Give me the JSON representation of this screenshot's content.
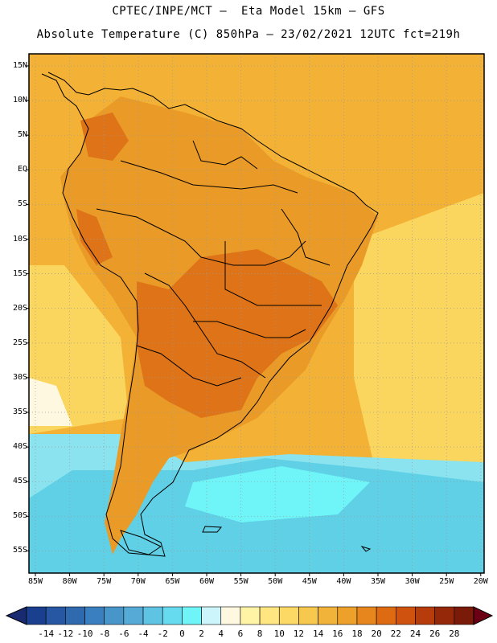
{
  "header": {
    "line1": "CPTEC/INPE/MCT –  Eta Model 15km – GFS",
    "line2": "Absolute Temperature (C) 850hPa – 23/02/2021 12UTC fct=219h"
  },
  "axes": {
    "lat_ticks": [
      "15N",
      "10N",
      "5N",
      "EQ",
      "5S",
      "10S",
      "15S",
      "20S",
      "25S",
      "30S",
      "35S",
      "40S",
      "45S",
      "50S",
      "55S"
    ],
    "lon_ticks": [
      "85W",
      "80W",
      "75W",
      "70W",
      "65W",
      "60W",
      "55W",
      "50W",
      "45W",
      "40W",
      "35W",
      "30W",
      "25W",
      "20W"
    ]
  },
  "colorbar": {
    "labels": [
      "-14",
      "-12",
      "-10",
      "-8",
      "-6",
      "-4",
      "-2",
      "0",
      "2",
      "4",
      "6",
      "8",
      "10",
      "12",
      "14",
      "16",
      "18",
      "20",
      "22",
      "24",
      "26",
      "28"
    ],
    "colors": [
      "#1a3f8f",
      "#2756a3",
      "#2f6aae",
      "#3a7fbf",
      "#4896c9",
      "#55abd6",
      "#5fc3e4",
      "#66dbef",
      "#6ff5f7",
      "#ccf4fb",
      "#fff8e0",
      "#fff3a6",
      "#ffe680",
      "#fcd964",
      "#f7c84e",
      "#f2b33a",
      "#eea12a",
      "#e8861e",
      "#de6a12",
      "#cf520e",
      "#b63c0b",
      "#96280a",
      "#7a1a08"
    ],
    "under_color": "#1a2a70",
    "over_color": "#6b0015"
  },
  "colors": {
    "ocean_warm": "#f3b235",
    "land_warm": "#ea9a27",
    "land_hot": "#de7317",
    "cold_cyan": "#5fd0e6",
    "cold_light": "#8ae3ee"
  }
}
